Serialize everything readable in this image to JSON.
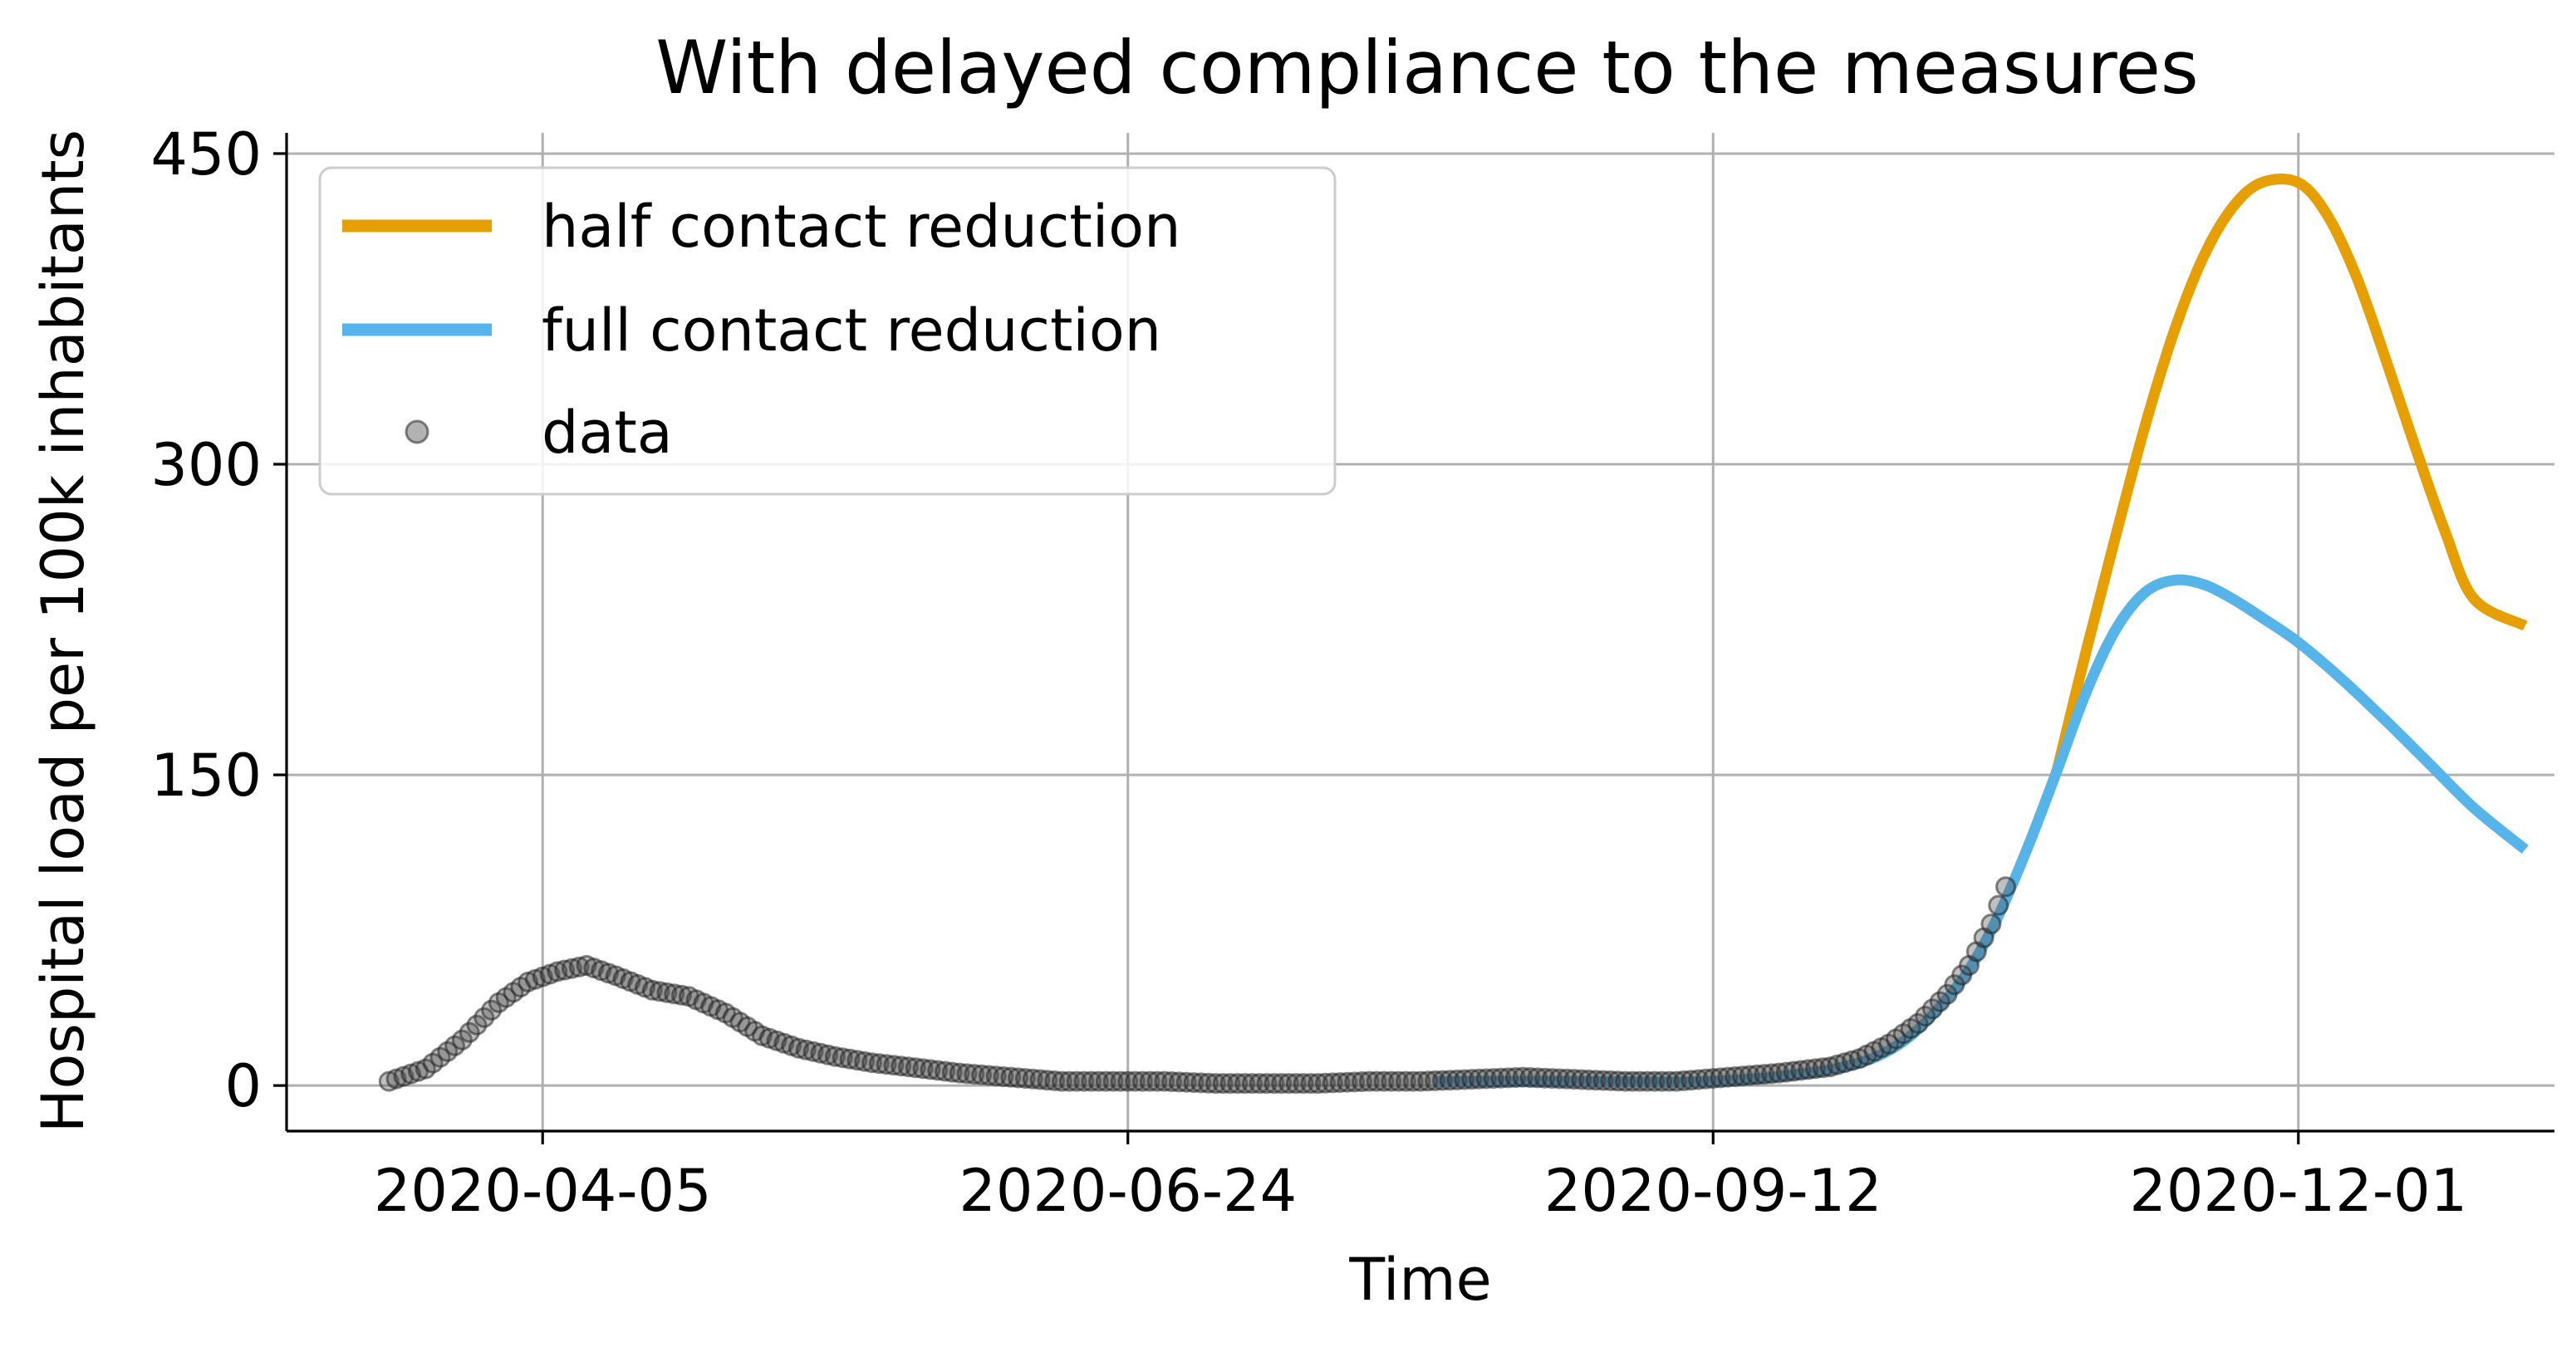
{
  "chart_data": {
    "type": "line",
    "title": "With delayed compliance to the measures",
    "xlabel": "Time",
    "ylabel": "Hospital load per 100k inhabitants",
    "x_tick_labels": [
      "2020-04-05",
      "2020-06-24",
      "2020-09-12",
      "2020-12-01"
    ],
    "x_ticks": [
      "2020-04-05",
      "2020-06-24",
      "2020-09-12",
      "2020-12-01"
    ],
    "y_ticks": [
      0,
      150,
      300,
      450
    ],
    "xlim": [
      "2020-03-01",
      "2021-01-05"
    ],
    "ylim": [
      -22,
      460
    ],
    "grid": true,
    "legend_position": "top-left",
    "series": [
      {
        "name": "half contact reduction",
        "kind": "line",
        "color": "#E69F00",
        "x": [
          "2020-10-29",
          "2020-11-02",
          "2020-11-06",
          "2020-11-10",
          "2020-11-14",
          "2020-11-18",
          "2020-11-22",
          "2020-11-26",
          "2020-12-01",
          "2020-12-05",
          "2020-12-09",
          "2020-12-13",
          "2020-12-17",
          "2020-12-21",
          "2020-12-25",
          "2021-01-01"
        ],
        "y": [
          152,
          210,
          265,
          318,
          364,
          400,
          424,
          436,
          436,
          420,
          390,
          350,
          308,
          268,
          235,
          222
        ]
      },
      {
        "name": "full contact reduction",
        "kind": "line",
        "color": "#56B4E9",
        "x": [
          "2020-08-05",
          "2020-08-25",
          "2020-09-12",
          "2020-09-25",
          "2020-10-01",
          "2020-10-05",
          "2020-10-09",
          "2020-10-13",
          "2020-10-17",
          "2020-10-21",
          "2020-10-25",
          "2020-10-29",
          "2020-11-02",
          "2020-11-06",
          "2020-11-10",
          "2020-11-14",
          "2020-11-18",
          "2020-11-22",
          "2020-11-26",
          "2020-12-01",
          "2020-12-07",
          "2020-12-13",
          "2020-12-19",
          "2020-12-25",
          "2021-01-01"
        ],
        "y": [
          2,
          2,
          2,
          6,
          10,
          15,
          24,
          38,
          56,
          82,
          115,
          152,
          190,
          220,
          238,
          244,
          242,
          235,
          226,
          214,
          196,
          176,
          155,
          134,
          114
        ]
      },
      {
        "name": "data",
        "kind": "scatter",
        "color": "#000000",
        "x": [
          "2020-03-15",
          "2020-03-20",
          "2020-03-25",
          "2020-03-30",
          "2020-04-03",
          "2020-04-07",
          "2020-04-11",
          "2020-04-15",
          "2020-04-20",
          "2020-04-25",
          "2020-04-30",
          "2020-05-05",
          "2020-05-10",
          "2020-05-15",
          "2020-05-20",
          "2020-05-25",
          "2020-06-01",
          "2020-06-08",
          "2020-06-15",
          "2020-06-22",
          "2020-06-29",
          "2020-07-06",
          "2020-07-13",
          "2020-07-20",
          "2020-07-27",
          "2020-08-03",
          "2020-08-10",
          "2020-08-17",
          "2020-08-24",
          "2020-08-31",
          "2020-09-07",
          "2020-09-14",
          "2020-09-21",
          "2020-09-28",
          "2020-10-02",
          "2020-10-06",
          "2020-10-10",
          "2020-10-14",
          "2020-10-17",
          "2020-10-20",
          "2020-10-22"
        ],
        "y": [
          2,
          8,
          22,
          40,
          50,
          55,
          58,
          53,
          46,
          43,
          35,
          24,
          18,
          14,
          11,
          9,
          6,
          4,
          2,
          2,
          2,
          1,
          1,
          1,
          2,
          2,
          3,
          4,
          3,
          2,
          2,
          4,
          6,
          9,
          13,
          20,
          30,
          44,
          58,
          78,
          96
        ]
      }
    ]
  }
}
